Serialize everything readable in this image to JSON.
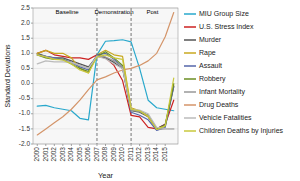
{
  "chart_data": {
    "type": "line",
    "xlabel": "Year",
    "ylabel": "Standard Deviations",
    "x": [
      2000,
      2001,
      2002,
      2003,
      2004,
      2005,
      2006,
      2007,
      2008,
      2009,
      2010,
      2011,
      2012,
      2013,
      2014,
      2015,
      2016
    ],
    "series": [
      {
        "name": "MIU Group Size",
        "color": "#29A8CC",
        "values": [
          -0.75,
          -0.72,
          -0.8,
          -0.85,
          -0.9,
          -1.15,
          -1.2,
          0.95,
          1.4,
          1.42,
          1.45,
          1.38,
          0.5,
          -0.55,
          -0.8,
          -0.85,
          -0.9
        ]
      },
      {
        "name": "U.S. Stress Index",
        "color": "#CC2222",
        "values": [
          1.0,
          1.1,
          0.95,
          0.9,
          0.85,
          0.85,
          0.8,
          0.95,
          0.85,
          0.6,
          0.1,
          -1.05,
          -1.1,
          -1.45,
          -1.5,
          -1.35,
          -0.55
        ]
      },
      {
        "name": "Murder",
        "color": "#555555",
        "values": [
          1.0,
          0.9,
          0.85,
          0.85,
          0.75,
          0.65,
          0.55,
          0.9,
          0.85,
          0.7,
          0.5,
          -0.9,
          -0.95,
          -1.1,
          -1.5,
          -1.35,
          -0.1
        ]
      },
      {
        "name": "Rape",
        "color": "#C8A820",
        "values": [
          1.0,
          1.1,
          1.0,
          1.0,
          0.85,
          0.5,
          0.35,
          0.95,
          1.1,
          0.95,
          0.9,
          -0.8,
          -0.9,
          -1.1,
          -1.5,
          -1.4,
          -0.05
        ]
      },
      {
        "name": "Assault",
        "color": "#5566AA",
        "values": [
          0.95,
          0.9,
          0.85,
          0.8,
          0.7,
          0.55,
          0.45,
          0.95,
          1.0,
          0.8,
          0.55,
          -0.95,
          -1.05,
          -1.2,
          -1.55,
          -1.45,
          -0.1
        ]
      },
      {
        "name": "Robbery",
        "color": "#6B8E23",
        "values": [
          0.95,
          0.85,
          0.8,
          0.8,
          0.65,
          0.5,
          0.4,
          0.9,
          1.05,
          0.85,
          0.6,
          -0.88,
          -0.92,
          -1.05,
          -1.5,
          -1.4,
          0.0
        ]
      },
      {
        "name": "Infant Mortality",
        "color": "#999999",
        "values": [
          0.95,
          0.9,
          0.82,
          0.78,
          0.7,
          0.6,
          0.5,
          0.92,
          0.88,
          0.75,
          0.55,
          -0.88,
          -0.92,
          -1.05,
          -1.52,
          -1.5,
          -1.5
        ]
      },
      {
        "name": "Drug Deaths",
        "color": "#D4956A",
        "values": [
          -1.7,
          -1.5,
          -1.3,
          -1.1,
          -0.85,
          -0.55,
          -0.2,
          0.12,
          0.22,
          0.35,
          0.45,
          0.5,
          0.6,
          0.75,
          1.0,
          1.55,
          2.35
        ]
      },
      {
        "name": "Vehicle Fatalities",
        "color": "#BBBBBB",
        "values": [
          0.65,
          0.75,
          0.72,
          0.72,
          0.7,
          0.6,
          0.5,
          0.9,
          0.82,
          0.65,
          0.5,
          -0.85,
          -0.88,
          -1.0,
          -1.45,
          -1.48,
          -1.5
        ]
      },
      {
        "name": "Children Deaths by Injuries",
        "color": "#C8C83C",
        "values": [
          0.95,
          0.88,
          0.8,
          0.78,
          0.65,
          0.45,
          0.35,
          0.88,
          0.95,
          0.85,
          0.8,
          -0.85,
          -0.9,
          -1.08,
          -1.52,
          -1.4,
          0.18
        ]
      }
    ],
    "vlines": [
      2007,
      2011
    ],
    "annotations": [
      {
        "text": "Baseline",
        "x": 2003.5,
        "y": 2.45
      },
      {
        "text": "Demonstration",
        "x": 2009.0,
        "y": 2.45
      },
      {
        "text": "Post",
        "x": 2013.5,
        "y": 2.45
      }
    ],
    "xlim": [
      1999.5,
      2016.5
    ],
    "xticks": [
      2000,
      2001,
      2002,
      2003,
      2004,
      2005,
      2006,
      2007,
      2008,
      2009,
      2010,
      2011,
      2012,
      2013,
      2014,
      2015
    ],
    "ylim": [
      -2.0,
      2.5
    ],
    "yticks": [
      {
        "value": -2.0,
        "label": "-2.0"
      },
      -1.5,
      {
        "value": -1.0,
        "label": "-1.0"
      },
      -0.5,
      {
        "value": 0.0,
        "label": "0.0"
      },
      0.5,
      {
        "value": 1.0,
        "label": "1.0"
      },
      1.5,
      {
        "value": 2.0,
        "label": "2.0"
      },
      2.5
    ],
    "grid": true,
    "legend": "right"
  }
}
